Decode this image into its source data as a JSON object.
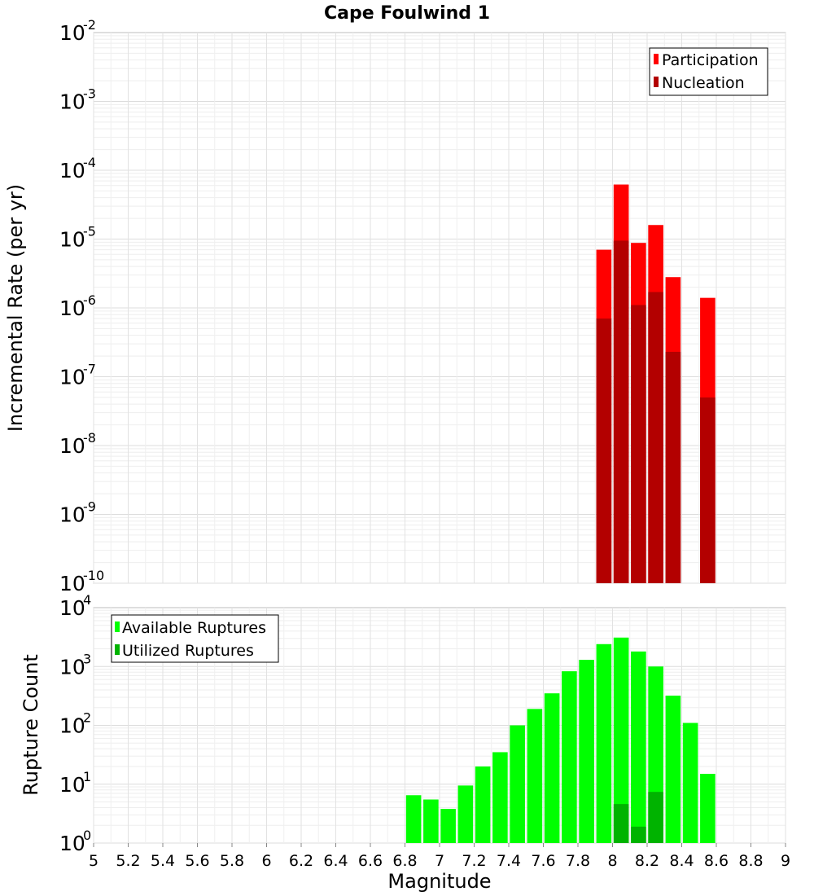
{
  "chart_data": [
    {
      "type": "bar",
      "title": "Cape Foulwind 1",
      "xlabel": "",
      "ylabel": "Incremental Rate (per yr)",
      "y_scale": "log",
      "xlim": [
        5,
        9
      ],
      "ylim_exponents": [
        -10,
        -2
      ],
      "grid": true,
      "legend_position": "top-right",
      "y_ticks": [
        {
          "base": "10",
          "exp": "-10"
        },
        {
          "base": "10",
          "exp": "-9"
        },
        {
          "base": "10",
          "exp": "-8"
        },
        {
          "base": "10",
          "exp": "-7"
        },
        {
          "base": "10",
          "exp": "-6"
        },
        {
          "base": "10",
          "exp": "-5"
        },
        {
          "base": "10",
          "exp": "-4"
        },
        {
          "base": "10",
          "exp": "-3"
        },
        {
          "base": "10",
          "exp": "-2"
        }
      ],
      "x": [
        7.95,
        8.05,
        8.15,
        8.25,
        8.35,
        8.55
      ],
      "series": [
        {
          "name": "Participation",
          "color": "#ff0000",
          "values": [
            7e-06,
            6.2e-05,
            8.8e-06,
            1.6e-05,
            2.8e-06,
            1.4e-06
          ]
        },
        {
          "name": "Nucleation",
          "color": "#b30000",
          "values": [
            7e-07,
            9.5e-06,
            1.1e-06,
            1.7e-06,
            2.3e-07,
            5e-08
          ]
        }
      ]
    },
    {
      "type": "bar",
      "title": "",
      "xlabel": "Magnitude",
      "ylabel": "Rupture Count",
      "y_scale": "log",
      "xlim": [
        5,
        9
      ],
      "ylim_exponents": [
        0,
        4
      ],
      "grid": true,
      "legend_position": "top-left",
      "y_ticks": [
        {
          "base": "10",
          "exp": "0"
        },
        {
          "base": "10",
          "exp": "1"
        },
        {
          "base": "10",
          "exp": "2"
        },
        {
          "base": "10",
          "exp": "3"
        },
        {
          "base": "10",
          "exp": "4"
        }
      ],
      "x_ticks": [
        "5",
        "5.2",
        "5.4",
        "5.6",
        "5.8",
        "6",
        "6.2",
        "6.4",
        "6.6",
        "6.8",
        "7",
        "7.2",
        "7.4",
        "7.6",
        "7.8",
        "8",
        "8.2",
        "8.4",
        "8.6",
        "8.8",
        "9"
      ],
      "x": [
        6.85,
        6.95,
        7.05,
        7.15,
        7.25,
        7.35,
        7.45,
        7.55,
        7.65,
        7.75,
        7.85,
        7.95,
        8.05,
        8.15,
        8.25,
        8.35,
        8.45,
        8.55
      ],
      "series": [
        {
          "name": "Available Ruptures",
          "color": "#00ff00",
          "values": [
            6.5,
            5.5,
            3.8,
            9.5,
            20,
            35,
            100,
            190,
            350,
            830,
            1300,
            2400,
            3100,
            1800,
            1000,
            320,
            110,
            15
          ]
        },
        {
          "name": "Utilized Ruptures",
          "color": "#00b300",
          "values": [
            null,
            null,
            null,
            null,
            null,
            null,
            null,
            null,
            null,
            null,
            null,
            1,
            4.6,
            1.9,
            7.4,
            1,
            null,
            1
          ]
        }
      ]
    }
  ]
}
